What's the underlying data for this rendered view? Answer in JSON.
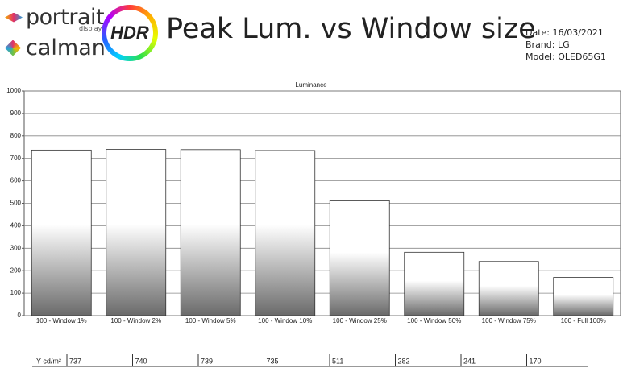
{
  "header": {
    "brand_top": "portrait",
    "brand_top_sub": "displays",
    "brand_bottom": "calman",
    "badge": "HDR",
    "title": "Peak Lum. vs Window size",
    "date": "Date: 16/03/2021",
    "brand": "Brand: LG",
    "model": "Model: OLED65G1"
  },
  "chart_data": {
    "type": "bar",
    "title": "Luminance",
    "categories": [
      "100 - Window  1%",
      "100 - Window  2%",
      "100 - Window  5%",
      "100 - Window 10%",
      "100 - Window 25%",
      "100 - Window 50%",
      "100 - Window 75%",
      "100 - Full  100%"
    ],
    "values": [
      737,
      740,
      739,
      735,
      511,
      282,
      241,
      170
    ],
    "row_label": "Y cd/m²",
    "ylim": [
      0,
      1000
    ],
    "yticks": [
      0,
      100,
      200,
      300,
      400,
      500,
      600,
      700,
      800,
      900,
      1000
    ],
    "grid": true
  }
}
